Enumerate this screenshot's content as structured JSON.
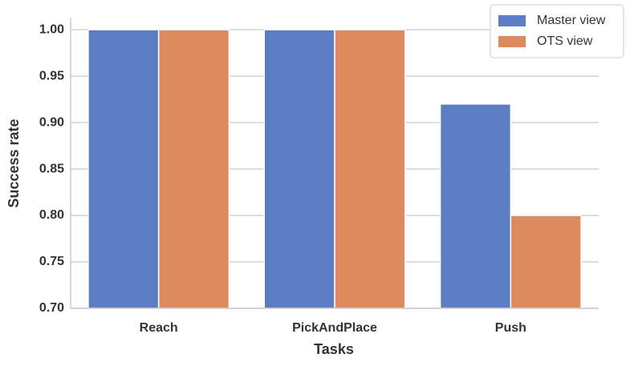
{
  "chart_data": {
    "type": "bar",
    "xlabel": "Tasks",
    "ylabel": "Success rate",
    "categories": [
      "Reach",
      "PickAndPlace",
      "Push"
    ],
    "series": [
      {
        "name": "Master view",
        "color": "#5a7ec1",
        "values": [
          1.0,
          1.0,
          0.92
        ]
      },
      {
        "name": "OTS view",
        "color": "#dc8a5e",
        "values": [
          1.0,
          1.0,
          0.8
        ]
      }
    ],
    "ylim": [
      0.7,
      1.013
    ],
    "yticks": [
      {
        "value": 0.7,
        "label": "0.70"
      },
      0.75,
      {
        "value": 0.8,
        "label": "0.80"
      },
      0.85,
      {
        "value": 0.9,
        "label": "0.90"
      },
      0.95,
      {
        "value": 1.0,
        "label": "1.00"
      }
    ],
    "grid": true,
    "legend": "upper right"
  }
}
